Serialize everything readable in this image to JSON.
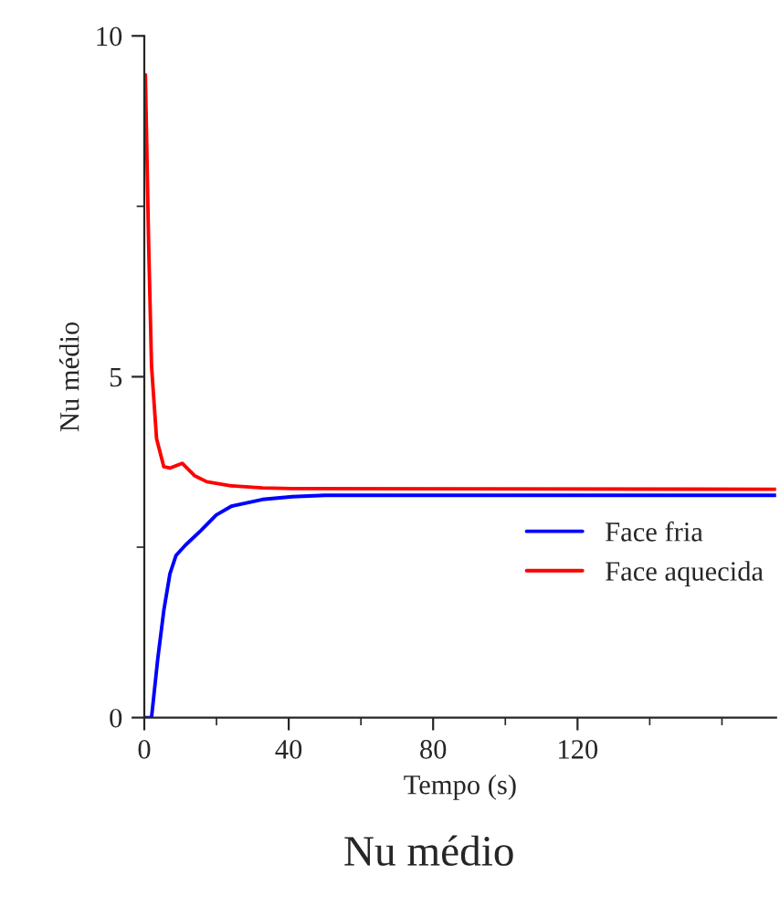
{
  "chart_data": {
    "type": "line",
    "title": "Nu médio",
    "xlabel": "Tempo (s)",
    "ylabel": "Nu médio",
    "xlim": [
      0,
      175
    ],
    "ylim": [
      0,
      10
    ],
    "xticks": [
      0,
      40,
      80,
      120
    ],
    "yticks": [
      0,
      5,
      10
    ],
    "legend": "right",
    "grid": false,
    "series": [
      {
        "name": "Face fria",
        "color": "#0000ff",
        "x": [
          0,
          2.0,
          3.7,
          5.4,
          7.1,
          8.8,
          11.4,
          15.6,
          19.9,
          24.1,
          32.7,
          41,
          50,
          175
        ],
        "values": [
          0,
          0,
          0.85,
          1.57,
          2.11,
          2.38,
          2.53,
          2.74,
          2.97,
          3.1,
          3.2,
          3.24,
          3.26,
          3.26
        ]
      },
      {
        "name": "Face aquecida",
        "color": "#ff0000",
        "x": [
          0.3,
          1.2,
          2.0,
          3.4,
          5.4,
          7.1,
          10.5,
          13.9,
          17.3,
          24,
          32.7,
          41,
          175
        ],
        "values": [
          9.43,
          6.96,
          5.16,
          4.09,
          3.68,
          3.66,
          3.73,
          3.55,
          3.46,
          3.4,
          3.37,
          3.36,
          3.35
        ]
      }
    ]
  }
}
